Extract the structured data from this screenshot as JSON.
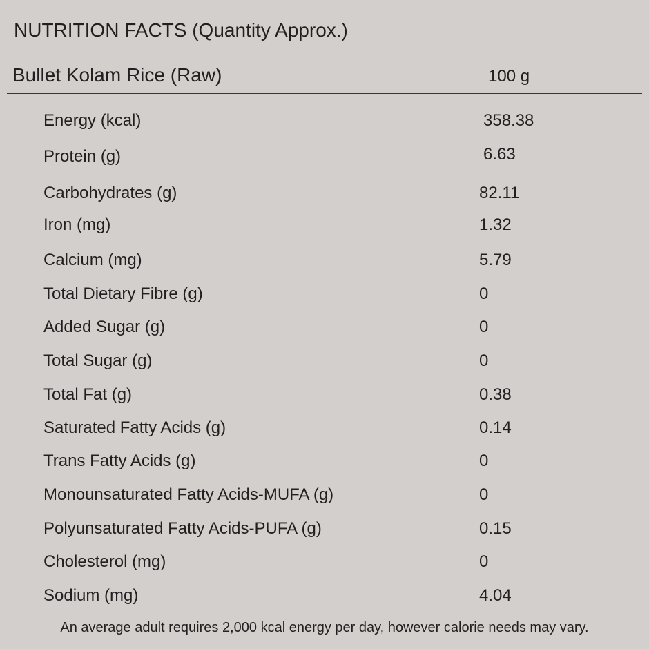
{
  "header": {
    "title": "NUTRITION FACTS (Quantity Approx.)"
  },
  "product": {
    "name": "Bullet Kolam Rice (Raw)",
    "serving": "100 g"
  },
  "nutrients": [
    {
      "label": "Energy (kcal)",
      "value": "358.38"
    },
    {
      "label": "Protein (g)",
      "value": "6.63"
    },
    {
      "label": "Carbohydrates (g)",
      "value": "82.11"
    },
    {
      "label": "Iron (mg)",
      "value": "1.32"
    },
    {
      "label": "Calcium (mg)",
      "value": "5.79"
    },
    {
      "label": "Total Dietary Fibre (g)",
      "value": "0"
    },
    {
      "label": "Added Sugar (g)",
      "value": "0"
    },
    {
      "label": "Total Sugar (g)",
      "value": "0"
    },
    {
      "label": "Total Fat (g)",
      "value": "0.38"
    },
    {
      "label": "Saturated Fatty Acids (g)",
      "value": "0.14"
    },
    {
      "label": "Trans Fatty Acids (g)",
      "value": "0"
    },
    {
      "label": "Monounsaturated Fatty Acids-MUFA (g)",
      "value": "0"
    },
    {
      "label": "Polyunsaturated Fatty Acids-PUFA (g)",
      "value": "0.15"
    },
    {
      "label": "Cholesterol (mg)",
      "value": "0"
    },
    {
      "label": "Sodium (mg)",
      "value": "4.04"
    }
  ],
  "footnote": "An average adult requires 2,000 kcal energy per day, however calorie needs may vary."
}
